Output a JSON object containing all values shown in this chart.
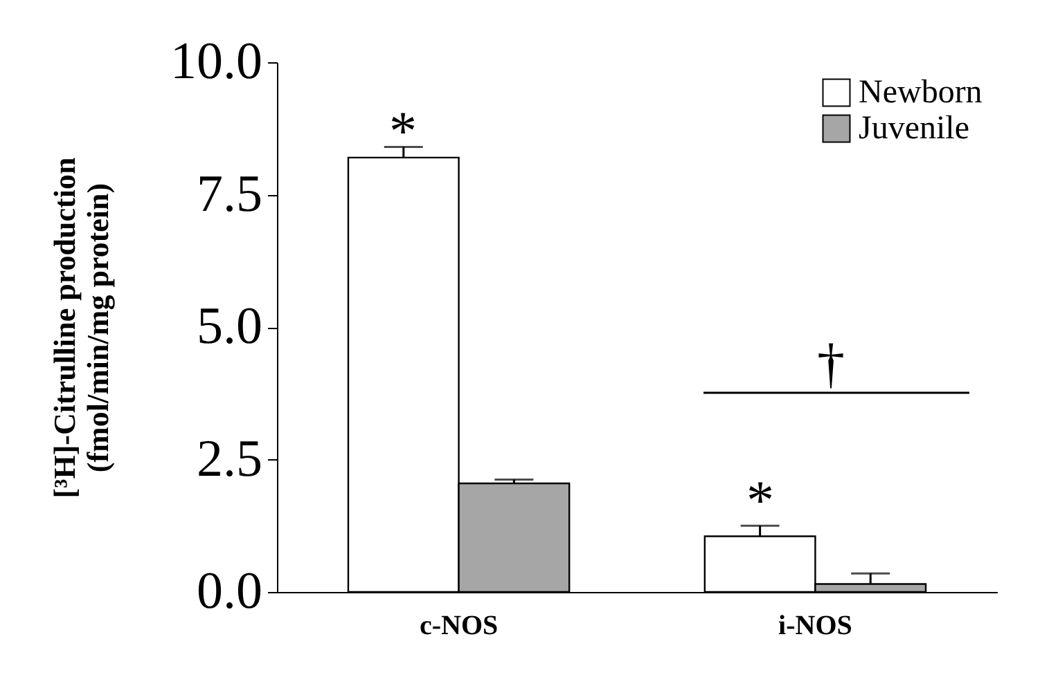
{
  "chart_data": {
    "type": "bar",
    "ylabel": "[³H]-Citrulline production\n(fmol/min/mg protein)",
    "categories": [
      "c-NOS",
      "i-NOS"
    ],
    "series": [
      {
        "name": "Newborn",
        "color": "#ffffff",
        "values": [
          8.2,
          1.05
        ],
        "errors": [
          0.2,
          0.2
        ]
      },
      {
        "name": "Juvenile",
        "color": "#a6a6a6",
        "values": [
          2.05,
          0.15
        ],
        "errors": [
          0.07,
          0.2
        ]
      }
    ],
    "ylim": [
      0,
      10
    ],
    "yticks": [
      {
        "value": 0,
        "label": "0.0"
      },
      {
        "value": 2.5,
        "label": "2.5"
      },
      {
        "value": 5,
        "label": "5.0"
      },
      {
        "value": 7.5,
        "label": "7.5"
      },
      {
        "value": 10,
        "label": "10.0"
      }
    ],
    "annotations": [
      "*",
      "*",
      "†"
    ],
    "legend": "top right",
    "grid": false
  }
}
